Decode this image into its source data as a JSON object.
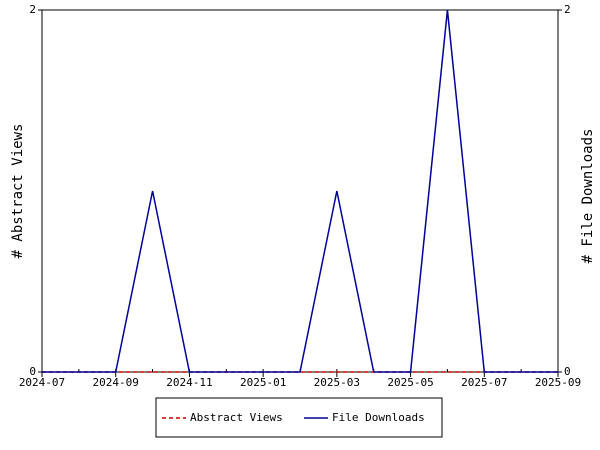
{
  "chart_data": {
    "type": "line",
    "x": [
      "2024-07",
      "2024-08",
      "2024-09",
      "2024-10",
      "2024-11",
      "2024-12",
      "2025-01",
      "2025-02",
      "2025-03",
      "2025-04",
      "2025-05",
      "2025-06",
      "2025-07",
      "2025-08",
      "2025-09"
    ],
    "xlim": [
      "2024-07",
      "2025-09"
    ],
    "xticks": [
      "2024-07",
      "2024-09",
      "2024-11",
      "2025-01",
      "2025-03",
      "2025-05",
      "2025-07",
      "2025-09"
    ],
    "y_label": "# Abstract Views",
    "y2_label": "# File Downloads",
    "ylim": [
      0,
      2
    ],
    "yticks": [
      0,
      2
    ],
    "y2lim": [
      0,
      2
    ],
    "y2ticks": [
      0,
      2
    ],
    "legend": "bottom",
    "series": [
      {
        "name": "Abstract Views",
        "color": "#cc0000",
        "dashed": true,
        "values": [
          0,
          0,
          0,
          0,
          0,
          0,
          0,
          0,
          0,
          0,
          0,
          0,
          0,
          0,
          0
        ]
      },
      {
        "name": "File Downloads",
        "color": "#000099",
        "axis": "y2",
        "values": [
          0,
          0,
          0,
          1,
          0,
          0,
          0,
          0,
          1,
          0,
          0,
          2,
          0,
          0,
          0
        ]
      }
    ]
  }
}
